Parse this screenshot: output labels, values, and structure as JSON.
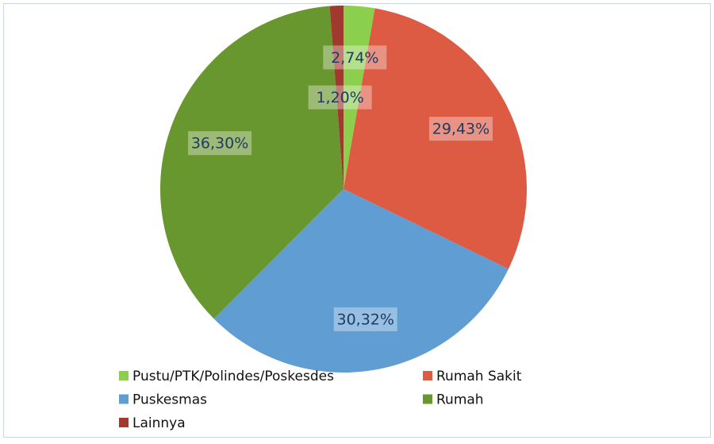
{
  "chart_data": {
    "type": "pie",
    "categories": [
      "Pustu/PTK/Polindes/Poskesdes",
      "Rumah Sakit",
      "Puskesmas",
      "Rumah",
      "Lainnya"
    ],
    "values": [
      2.74,
      29.43,
      30.32,
      36.3,
      1.2
    ],
    "value_labels": [
      "2,74%",
      "29,43%",
      "30,32%",
      "36,30%",
      "1,20%"
    ],
    "colors": [
      "#8ccf4d",
      "#dd5a43",
      "#5f9dd2",
      "#69972f",
      "#a0392e"
    ],
    "legend": "bottom"
  }
}
